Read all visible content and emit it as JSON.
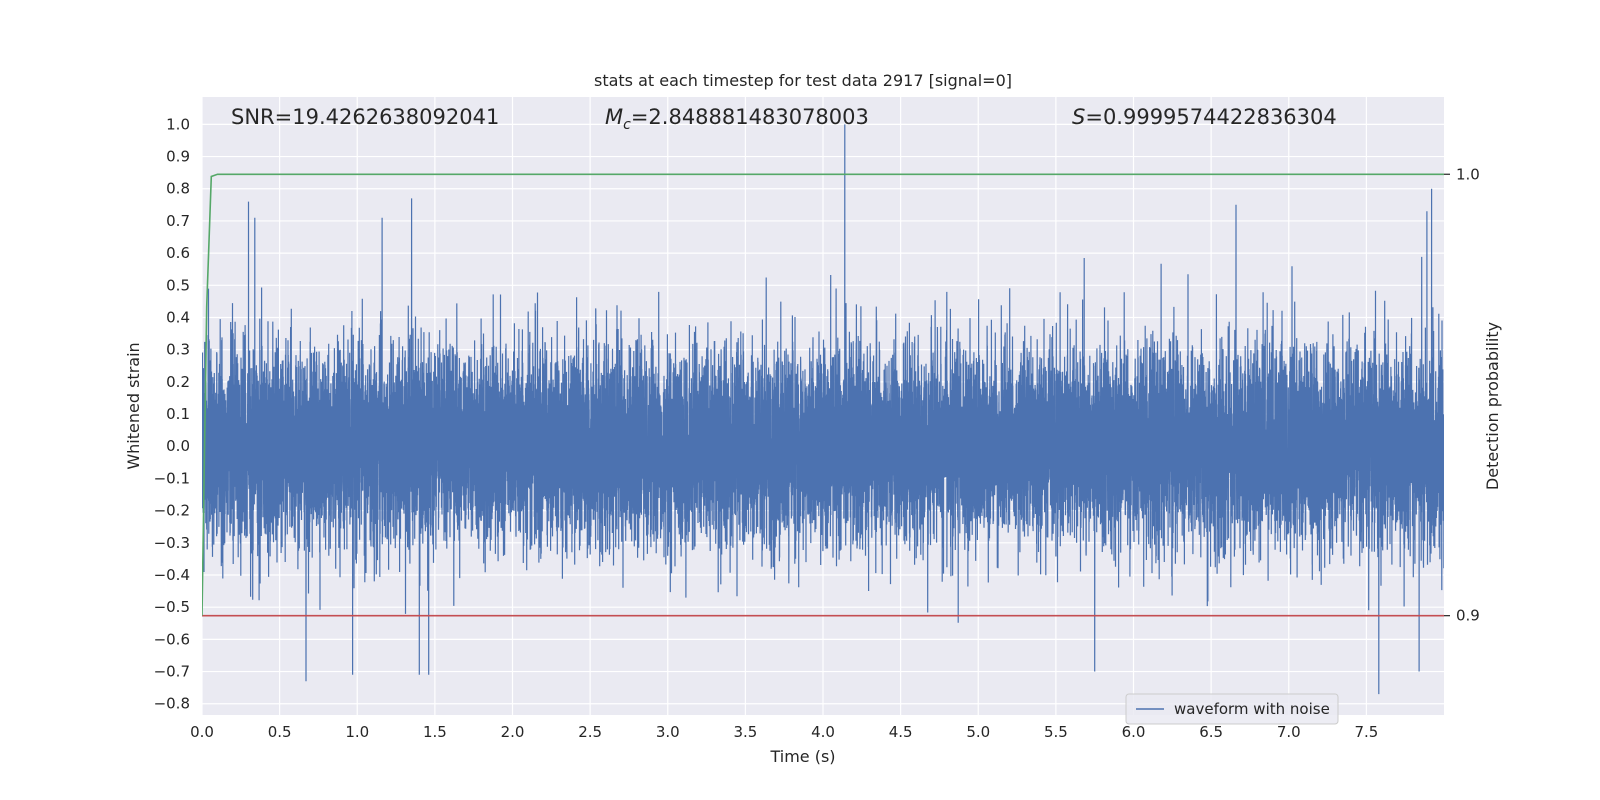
{
  "chart_data": {
    "type": "line",
    "title": "stats at each timestep for test data 2917 [signal=0]",
    "xlabel": "Time (s)",
    "ylabel": "Whitened strain",
    "y2label": "Detection probability",
    "xlim": [
      0.0,
      8.0
    ],
    "ylim": [
      -0.835,
      1.085
    ],
    "y2lim": [
      0.8775,
      1.0175
    ],
    "x_ticks": [
      "0.0",
      "0.5",
      "1.0",
      "1.5",
      "2.0",
      "2.5",
      "3.0",
      "3.5",
      "4.0",
      "4.5",
      "5.0",
      "5.5",
      "6.0",
      "6.5",
      "7.0",
      "7.5"
    ],
    "y_ticks": [
      "1.0",
      "0.9",
      "0.8",
      "0.7",
      "0.6",
      "0.5",
      "0.4",
      "0.3",
      "0.2",
      "0.1",
      "0.0",
      "−0.1",
      "−0.2",
      "−0.3",
      "−0.4",
      "−0.5",
      "−0.6",
      "−0.7",
      "−0.8"
    ],
    "y2_ticks": [
      "1.0",
      "0.9"
    ],
    "annotations": {
      "snr": "SNR=19.4262638092041",
      "mc_symbol": "M",
      "mc_sub": "c",
      "mc_value": "=2.848881483078003",
      "s_symbol": "S",
      "s_value": "=0.9999574422836304"
    },
    "grid": true,
    "legend_placement": "lower-right",
    "series": [
      {
        "name": "waveform with noise",
        "color": "#4c72b0",
        "kind": "noise",
        "sample_rate": 2048,
        "duration": 8.0,
        "typical_range": [
          -0.45,
          0.45
        ],
        "max": 1.0,
        "min": -0.77,
        "peaks": [
          {
            "x": 4.14,
            "y": 1.0
          },
          {
            "x": 7.92,
            "y": 0.8
          },
          {
            "x": 1.35,
            "y": 0.77
          },
          {
            "x": 0.3,
            "y": 0.76
          },
          {
            "x": 0.34,
            "y": 0.71
          },
          {
            "x": 1.16,
            "y": 0.71
          },
          {
            "x": 6.66,
            "y": 0.75
          },
          {
            "x": 7.89,
            "y": 0.73
          },
          {
            "x": 7.58,
            "y": -0.77
          },
          {
            "x": 0.67,
            "y": -0.73
          },
          {
            "x": 0.97,
            "y": -0.71
          },
          {
            "x": 1.4,
            "y": -0.71
          },
          {
            "x": 1.46,
            "y": -0.71
          },
          {
            "x": 5.75,
            "y": -0.7
          },
          {
            "x": 7.84,
            "y": -0.7
          }
        ]
      },
      {
        "color": "#55a868",
        "axis": "right",
        "kind": "probability",
        "x": [
          0.0,
          0.03,
          0.06,
          0.1,
          0.14,
          8.0
        ],
        "y": [
          0.9,
          0.97,
          0.9995,
          1.0,
          1.0,
          1.0
        ]
      },
      {
        "color": "#c44e52",
        "axis": "right",
        "kind": "threshold",
        "x": [
          0.0,
          8.0
        ],
        "y": [
          0.9,
          0.9
        ]
      }
    ]
  }
}
